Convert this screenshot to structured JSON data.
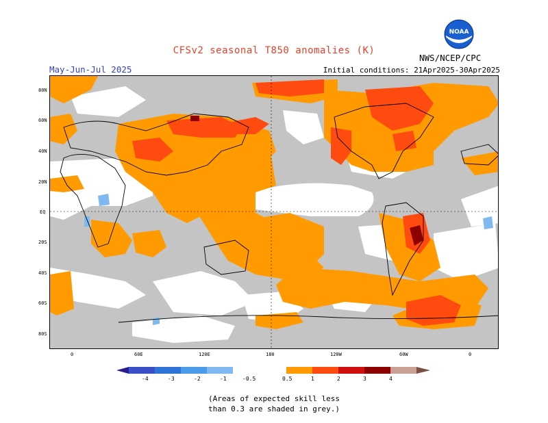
{
  "header": {
    "title": "CFSv2 seasonal T850 anomalies (K)",
    "season": "May-Jun-Jul 2025",
    "initial_conditions": "Initial conditions: 21Apr2025-30Apr2025",
    "agency": "NWS/NCEP/CPC",
    "logo_text": "NOAA"
  },
  "map": {
    "lat_labels": [
      "80N",
      "60N",
      "40N",
      "20N",
      "EQ",
      "20S",
      "40S",
      "60S",
      "80S"
    ],
    "lon_labels": [
      "0",
      "60E",
      "120E",
      "180",
      "120W",
      "60W",
      "0"
    ],
    "skill_shading_color": "#c4c4c4"
  },
  "colorbar": {
    "labels": [
      "-4",
      "-3",
      "-2",
      "-1",
      "-0.5",
      "0.5",
      "1",
      "2",
      "3",
      "4"
    ],
    "colors": [
      "#2a1c8f",
      "#3a4fc8",
      "#2f72d8",
      "#4a9be8",
      "#7fb9ef",
      "#ffffff",
      "#ff9a00",
      "#ff4a10",
      "#d01010",
      "#8c0000",
      "#c8a096",
      "#7a5040"
    ]
  },
  "footer": {
    "note_line1": "(Areas of expected skill less",
    "note_line2": "than 0.3 are shaded in grey.)"
  }
}
